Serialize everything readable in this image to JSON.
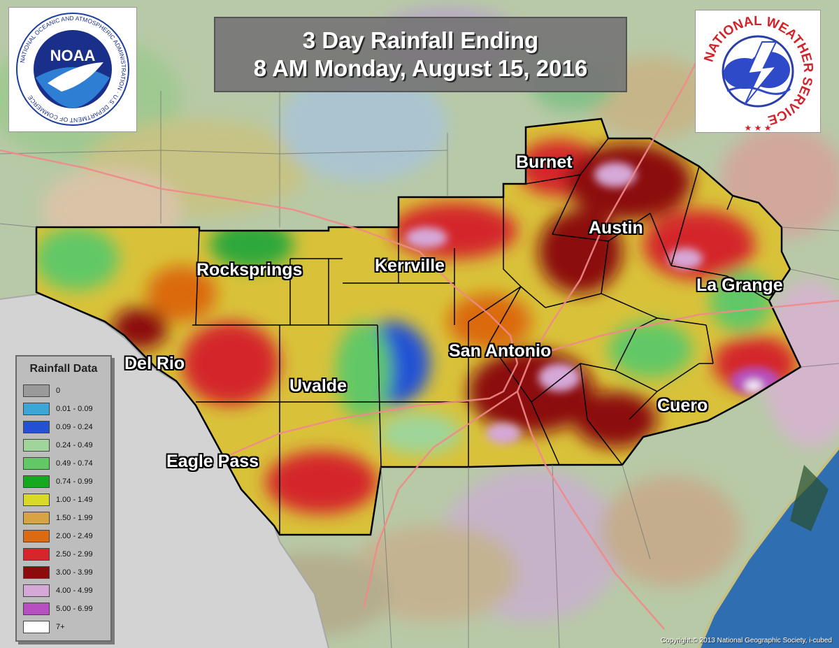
{
  "title": {
    "line1": "3 Day Rainfall Ending",
    "line2": "8 AM Monday, August 15, 2016"
  },
  "logos": {
    "noaa": {
      "text": "NOAA",
      "ring_text": "NATIONAL OCEANIC AND ATMOSPHERIC ADMINISTRATION · U.S. DEPARTMENT OF COMMERCE"
    },
    "nws": {
      "ring_text": "NATIONAL WEATHER SERVICE"
    }
  },
  "cities": {
    "burnet": "Burnet",
    "austin": "Austin",
    "rocksprings": "Rocksprings",
    "kerrville": "Kerrville",
    "la_grange": "La Grange",
    "san_antonio": "San Antonio",
    "del_rio": "Del Rio",
    "uvalde": "Uvalde",
    "cuero": "Cuero",
    "eagle_pass": "Eagle Pass"
  },
  "legend": {
    "title": "Rainfall Data",
    "items": [
      {
        "label": "0",
        "color": "#9a9a9a"
      },
      {
        "label": "0.01 - 0.09",
        "color": "#3ea6d6"
      },
      {
        "label": "0.09 - 0.24",
        "color": "#2251d4"
      },
      {
        "label": "0.24 - 0.49",
        "color": "#9fd59a"
      },
      {
        "label": "0.49 - 0.74",
        "color": "#62c866"
      },
      {
        "label": "0.74 - 0.99",
        "color": "#16a81e"
      },
      {
        "label": "1.00 - 1.49",
        "color": "#d9d927"
      },
      {
        "label": "1.50 - 1.99",
        "color": "#d7a445"
      },
      {
        "label": "2.00 - 2.49",
        "color": "#db6a10"
      },
      {
        "label": "2.50 - 2.99",
        "color": "#d4262b"
      },
      {
        "label": "3.00 - 3.99",
        "color": "#8c0b0b"
      },
      {
        "label": "4.00 - 4.99",
        "color": "#d6a8d8"
      },
      {
        "label": "5.00 - 6.99",
        "color": "#b74fc0"
      },
      {
        "label": "7+",
        "color": "#ffffff"
      }
    ]
  },
  "copyright": "Copyright:© 2013 National Geographic Society, i-cubed"
}
